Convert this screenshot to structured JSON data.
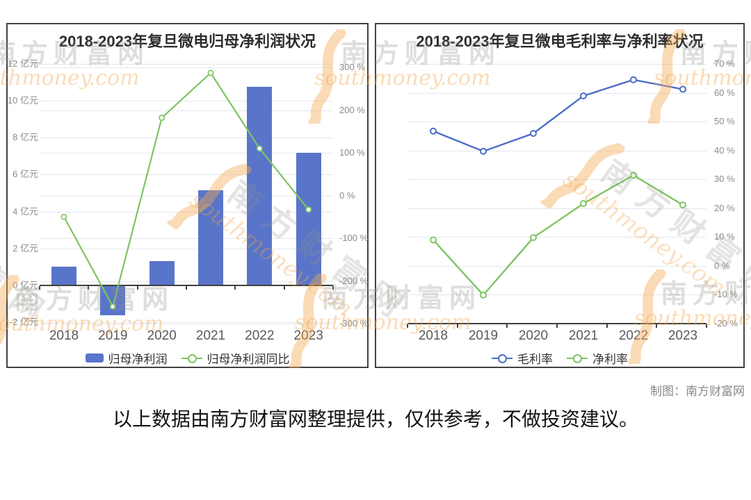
{
  "page": {
    "watermark": {
      "cn": "南方财富网",
      "en": "southmoney.com"
    },
    "credit": "制图：南方财富网",
    "disclaimer": "以上数据由南方财富网整理提供，仅供参考，不做投资建议。"
  },
  "colors": {
    "bar_blue": "#5975c9",
    "line_blue": "#4c6ec6",
    "line_green": "#7ec463",
    "grid": "#e3e7f0",
    "axis": "#3f3f3f"
  },
  "chart_data": [
    {
      "type": "bar",
      "title": "2018-2023年复旦微电归母净利润状况",
      "categories": [
        "2018",
        "2019",
        "2020",
        "2021",
        "2022",
        "2023"
      ],
      "series": [
        {
          "name": "归母净利润",
          "type": "bar",
          "axis": "left",
          "unit": "亿元",
          "values": [
            1.01,
            -1.62,
            1.33,
            5.14,
            10.77,
            7.19
          ],
          "color": "#5975c9"
        },
        {
          "name": "归母净利润同比",
          "type": "line",
          "axis": "right",
          "unit": "%",
          "values": [
            -50,
            -260,
            182,
            287,
            110,
            -33
          ],
          "color": "#7ec463"
        }
      ],
      "left_axis": {
        "unit": "亿元",
        "min": -2,
        "max": 12,
        "ticks": [
          "12 亿元",
          "10 亿元",
          "8 亿元",
          "6 亿元",
          "4 亿元",
          "2 亿元",
          "0 亿元",
          "-2 亿元"
        ]
      },
      "right_axis": {
        "unit": "%",
        "min": -300,
        "max": 300,
        "ticks": [
          "300 %",
          "200 %",
          "100 %",
          "0 %",
          "-100 %",
          "-200 %",
          "-300 %"
        ]
      },
      "legend": [
        "归母净利润",
        "归母净利润同比"
      ],
      "grid": true,
      "legend_position": "bottom"
    },
    {
      "type": "line",
      "title": "2018-2023年复旦微电毛利率与净利率状况",
      "categories": [
        "2018",
        "2019",
        "2020",
        "2021",
        "2022",
        "2023"
      ],
      "series": [
        {
          "name": "毛利率",
          "type": "line",
          "unit": "%",
          "values": [
            46.7,
            39.7,
            45.9,
            58.9,
            64.5,
            61.2
          ],
          "color": "#4c6ec6"
        },
        {
          "name": "净利率",
          "type": "line",
          "unit": "%",
          "values": [
            9.0,
            -10.1,
            9.8,
            21.6,
            31.4,
            21.1
          ],
          "color": "#7ec463"
        }
      ],
      "y_axis": {
        "unit": "%",
        "min": -20,
        "max": 70,
        "ticks": [
          "70 %",
          "60 %",
          "50 %",
          "40 %",
          "30 %",
          "20 %",
          "10 %",
          "0 %",
          "-10 %",
          "-20 %"
        ]
      },
      "legend": [
        "毛利率",
        "净利率"
      ],
      "grid": true,
      "legend_position": "bottom"
    }
  ]
}
